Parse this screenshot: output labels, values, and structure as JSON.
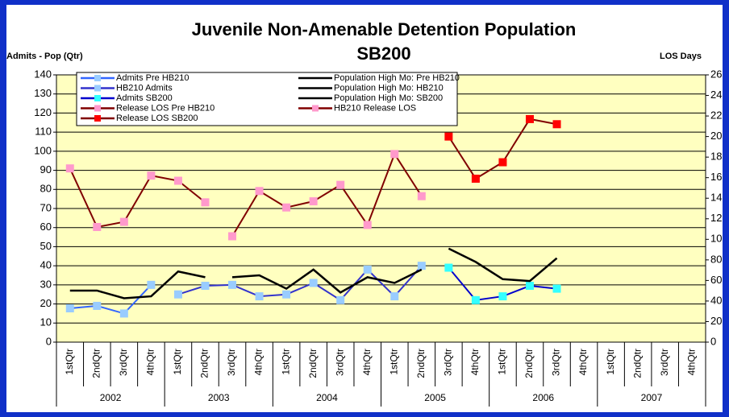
{
  "chart_data": {
    "type": "line",
    "title": "Juvenile Non-Amenable Detention Population",
    "subtitle": "SB200",
    "y_label": "Admits - Pop (Qtr)",
    "y2_label": "LOS Days",
    "categories": [
      "1stQtr",
      "2ndQtr",
      "3rdQtr",
      "4thQtr",
      "1stQtr",
      "2ndQtr",
      "3rdQtr",
      "4thQtr",
      "1stQtr",
      "2ndQtr",
      "3rdQtr",
      "4thQtr",
      "1stQtr",
      "2ndQtr",
      "3rdQtr",
      "4thQtr",
      "1stQtr",
      "2ndQtr",
      "3rdQtr",
      "4thQtr",
      "1stQtr",
      "2ndQtr",
      "3rdQtr",
      "4thQtr"
    ],
    "groups": [
      "2002",
      "2003",
      "2004",
      "2005",
      "2006",
      "2007"
    ],
    "ylim": [
      0,
      140
    ],
    "yticks": [
      0,
      10,
      20,
      30,
      40,
      50,
      60,
      70,
      80,
      90,
      100,
      110,
      120,
      130,
      140
    ],
    "y2lim": [
      0,
      260
    ],
    "y2ticks": [
      0,
      20,
      40,
      60,
      80,
      100,
      120,
      140,
      160,
      180,
      200,
      220,
      240,
      260
    ],
    "grid": true,
    "series": [
      {
        "name": "Admits Pre HB210",
        "color": "#3366ff",
        "marker_color": "#99ccff",
        "values": [
          17.7,
          19,
          15,
          30,
          null,
          null,
          null,
          null,
          null,
          null,
          null,
          null,
          null,
          null,
          null,
          null,
          null,
          null,
          null,
          null,
          null,
          null,
          null,
          null
        ]
      },
      {
        "name": "Population High Mo: Pre HB210",
        "color": "#000000",
        "values": [
          27,
          27,
          23,
          24,
          37,
          34,
          null,
          null,
          null,
          null,
          null,
          null,
          null,
          null,
          null,
          null,
          null,
          null,
          null,
          null,
          null,
          null,
          null,
          null
        ]
      },
      {
        "name": "HB210 Admits",
        "color": "#3333cc",
        "marker_color": "#99ccff",
        "values": [
          null,
          null,
          null,
          null,
          25,
          29.5,
          30,
          24,
          25,
          31,
          22,
          38,
          24,
          40,
          null,
          null,
          null,
          null,
          null,
          null,
          null,
          null,
          null,
          null
        ]
      },
      {
        "name": "Population High Mo: HB210",
        "color": "#000000",
        "values": [
          null,
          null,
          null,
          null,
          null,
          null,
          34,
          35,
          28,
          38,
          26,
          34,
          31,
          38,
          null,
          null,
          null,
          null,
          null,
          null,
          null,
          null,
          null,
          null
        ]
      },
      {
        "name": "Admits SB200",
        "color": "#0000cc",
        "marker_color": "#33ffff",
        "values": [
          null,
          null,
          null,
          null,
          null,
          null,
          null,
          null,
          null,
          null,
          null,
          null,
          null,
          null,
          39,
          22,
          24,
          29.5,
          28,
          null,
          null,
          null,
          null,
          null
        ]
      },
      {
        "name": "Population High Mo: SB200",
        "color": "#000000",
        "values": [
          null,
          null,
          null,
          null,
          null,
          null,
          null,
          null,
          null,
          null,
          null,
          null,
          null,
          null,
          49,
          42,
          33,
          32,
          44,
          null,
          null,
          null,
          null,
          null
        ]
      },
      {
        "name": "Release LOS Pre HB210",
        "color": "#800000",
        "marker_color": "#ff99cc",
        "axis": "y2",
        "values": [
          169,
          112,
          117,
          162,
          157,
          136,
          null,
          null,
          null,
          null,
          null,
          null,
          null,
          null,
          null,
          null,
          null,
          null,
          null,
          null,
          null,
          null,
          null,
          null
        ]
      },
      {
        "name": "HB210 Release LOS",
        "color": "#800000",
        "marker_color": "#ff99cc",
        "axis": "y2",
        "values": [
          null,
          null,
          null,
          null,
          null,
          null,
          103,
          147,
          131,
          137,
          153,
          114,
          183,
          142,
          null,
          null,
          null,
          null,
          null,
          null,
          null,
          null,
          null,
          null
        ]
      },
      {
        "name": "Release LOS SB200",
        "color": "#800000",
        "marker_color": "#ff0000",
        "axis": "y2",
        "values": [
          null,
          null,
          null,
          null,
          null,
          null,
          null,
          null,
          null,
          null,
          null,
          null,
          null,
          null,
          200,
          159,
          175,
          217,
          212,
          null,
          null,
          null,
          null,
          null
        ]
      }
    ]
  }
}
